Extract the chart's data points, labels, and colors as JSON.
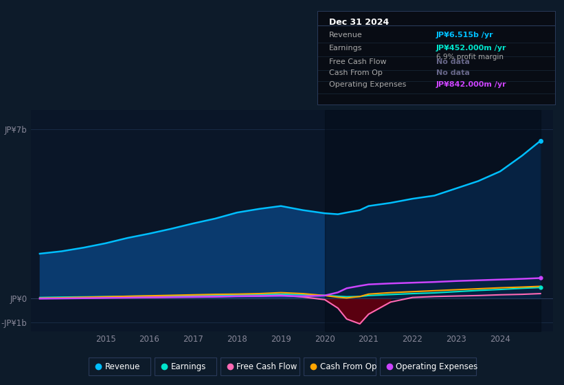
{
  "bg_color": "#0d1b2a",
  "plot_bg_color": "#0a1628",
  "grid_color": "#1a2f4a",
  "years": [
    2013.5,
    2014,
    2014.5,
    2015,
    2015.5,
    2016,
    2016.5,
    2017,
    2017.5,
    2018,
    2018.5,
    2019,
    2019.5,
    2020,
    2020.3,
    2020.5,
    2020.8,
    2021,
    2021.5,
    2022,
    2022.5,
    2023,
    2023.5,
    2024,
    2024.5,
    2024.92
  ],
  "revenue": [
    1.85,
    1.95,
    2.1,
    2.28,
    2.5,
    2.68,
    2.88,
    3.1,
    3.3,
    3.55,
    3.7,
    3.82,
    3.65,
    3.52,
    3.48,
    3.55,
    3.65,
    3.82,
    3.95,
    4.12,
    4.25,
    4.55,
    4.85,
    5.25,
    5.9,
    6.515
  ],
  "earnings": [
    0.04,
    0.055,
    0.065,
    0.075,
    0.09,
    0.1,
    0.11,
    0.12,
    0.135,
    0.15,
    0.16,
    0.17,
    0.155,
    0.13,
    0.09,
    0.07,
    0.08,
    0.12,
    0.16,
    0.2,
    0.23,
    0.28,
    0.33,
    0.37,
    0.42,
    0.452
  ],
  "free_cash_flow": [
    0.01,
    0.015,
    0.02,
    0.03,
    0.04,
    0.05,
    0.06,
    0.07,
    0.08,
    0.09,
    0.1,
    0.13,
    0.06,
    -0.05,
    -0.4,
    -0.85,
    -1.05,
    -0.65,
    -0.15,
    0.04,
    0.08,
    0.1,
    0.12,
    0.15,
    0.17,
    0.2
  ],
  "cash_from_op": [
    0.01,
    0.03,
    0.05,
    0.07,
    0.09,
    0.11,
    0.13,
    0.15,
    0.17,
    0.18,
    0.2,
    0.24,
    0.2,
    0.12,
    0.05,
    0.02,
    0.08,
    0.18,
    0.24,
    0.28,
    0.32,
    0.36,
    0.4,
    0.44,
    0.47,
    0.5
  ],
  "operating_expenses": [
    -0.01,
    0.0,
    0.01,
    0.02,
    0.03,
    0.04,
    0.05,
    0.06,
    0.07,
    0.09,
    0.1,
    0.11,
    0.09,
    0.12,
    0.25,
    0.42,
    0.52,
    0.58,
    0.62,
    0.65,
    0.68,
    0.72,
    0.75,
    0.78,
    0.81,
    0.842
  ],
  "xlim": [
    2013.3,
    2025.2
  ],
  "ylim": [
    -1.35,
    7.8
  ],
  "revenue_color": "#00bfff",
  "earnings_color": "#00e5cc",
  "free_cash_flow_color": "#ff69b4",
  "cash_from_op_color": "#ffa500",
  "operating_expenses_color": "#cc44ff",
  "revenue_fill_color": "#0a3a6e",
  "free_cash_flow_fill_neg_color": "#5a0010",
  "xtick_labels": [
    "2015",
    "2016",
    "2017",
    "2018",
    "2019",
    "2020",
    "2021",
    "2022",
    "2023",
    "2024"
  ],
  "xtick_positions": [
    2015,
    2016,
    2017,
    2018,
    2019,
    2020,
    2021,
    2022,
    2023,
    2024
  ],
  "ytick_labels": [
    "-JP¥1b",
    "JP¥0",
    "JP¥7b"
  ],
  "ytick_positions": [
    -1,
    0,
    7
  ],
  "info_box": {
    "title": "Dec 31 2024",
    "rows": [
      {
        "label": "Revenue",
        "value": "JP¥6.515b",
        "suffix": " /yr",
        "value_color": "#00bfff",
        "extra": null
      },
      {
        "label": "Earnings",
        "value": "JP¥452.000m",
        "suffix": " /yr",
        "value_color": "#00e5cc",
        "extra": "6.9% profit margin"
      },
      {
        "label": "Free Cash Flow",
        "value": "No data",
        "suffix": "",
        "value_color": "#666688",
        "extra": null
      },
      {
        "label": "Cash From Op",
        "value": "No data",
        "suffix": "",
        "value_color": "#666688",
        "extra": null
      },
      {
        "label": "Operating Expenses",
        "value": "JP¥842.000m",
        "suffix": " /yr",
        "value_color": "#cc44ff",
        "extra": null
      }
    ]
  },
  "legend": [
    {
      "label": "Revenue",
      "color": "#00bfff"
    },
    {
      "label": "Earnings",
      "color": "#00e5cc"
    },
    {
      "label": "Free Cash Flow",
      "color": "#ff69b4"
    },
    {
      "label": "Cash From Op",
      "color": "#ffa500"
    },
    {
      "label": "Operating Expenses",
      "color": "#cc44ff"
    }
  ],
  "shaded_region_start": 2019.95
}
